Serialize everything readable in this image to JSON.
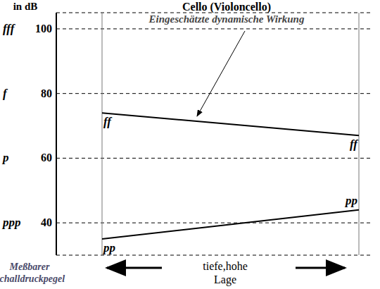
{
  "chart_data": {
    "type": "line",
    "title": "Cello (Violoncello)",
    "annotation": "Eingeschätzte dynamische Wirkung",
    "y_label": "in dB",
    "y_label_bottom": "Meßbarer Schalldruckpegel",
    "x_label": "tiefe,hohe Lage",
    "x": [
      0,
      1
    ],
    "xlim": [
      0,
      1
    ],
    "ylim": [
      30,
      105
    ],
    "yticks": [
      40,
      60,
      80,
      100
    ],
    "dynamic_marks": [
      {
        "value": 40,
        "label": "ppp"
      },
      {
        "value": 60,
        "label": "p"
      },
      {
        "value": 80,
        "label": "f"
      },
      {
        "value": 100,
        "label": "fff"
      }
    ],
    "series": [
      {
        "name": "ff",
        "color": "#000000",
        "values": [
          74,
          67
        ]
      },
      {
        "name": "pp",
        "color": "#000000",
        "values": [
          35,
          44
        ]
      }
    ],
    "grid": true,
    "tick_labels": "y"
  }
}
